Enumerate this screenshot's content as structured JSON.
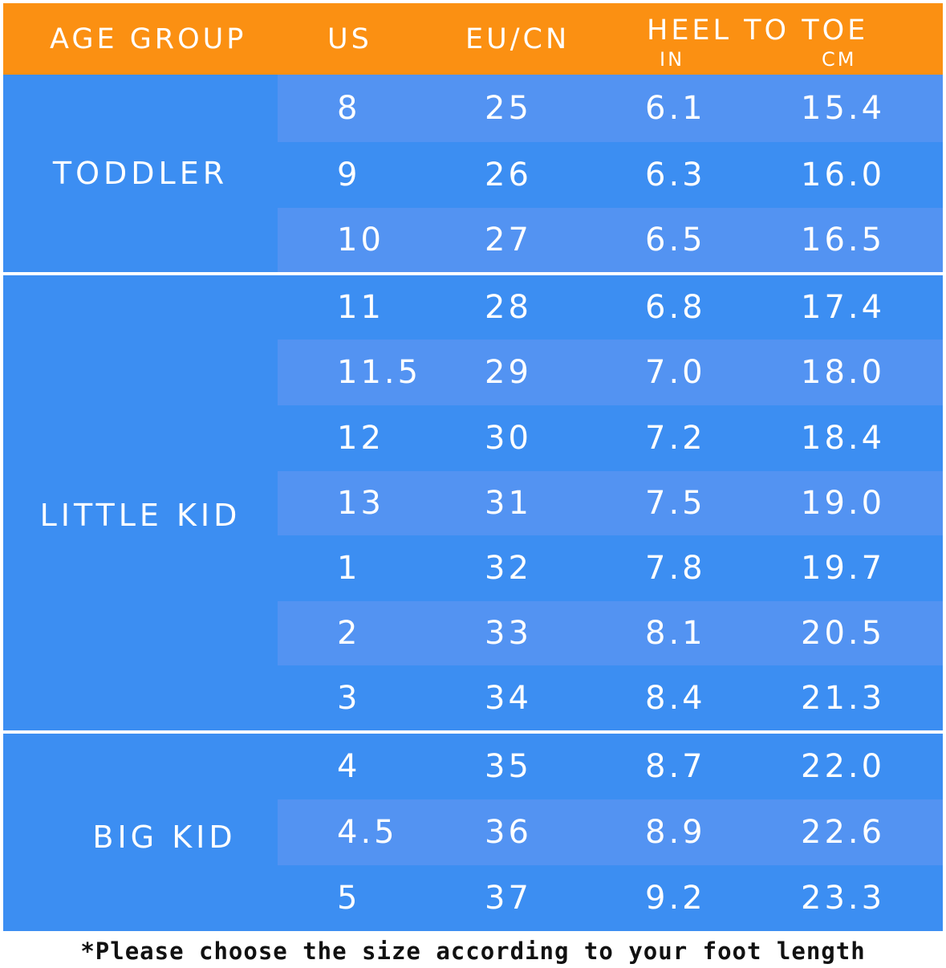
{
  "header": {
    "age_group": "AGE GROUP",
    "us": "US",
    "eu_cn": "EU/CN",
    "heel_to_toe": "HEEL TO TOE",
    "in": "IN",
    "cm": "CM"
  },
  "groups": [
    {
      "label": "TODDLER",
      "rows": [
        {
          "us": "8",
          "eu": "25",
          "in": "6.1",
          "cm": "15.4"
        },
        {
          "us": "9",
          "eu": "26",
          "in": "6.3",
          "cm": "16.0"
        },
        {
          "us": "10",
          "eu": "27",
          "in": "6.5",
          "cm": "16.5"
        }
      ]
    },
    {
      "label": "LITTLE KID",
      "rows": [
        {
          "us": "11",
          "eu": "28",
          "in": "6.8",
          "cm": "17.4"
        },
        {
          "us": "11.5",
          "eu": "29",
          "in": "7.0",
          "cm": "18.0"
        },
        {
          "us": "12",
          "eu": "30",
          "in": "7.2",
          "cm": "18.4"
        },
        {
          "us": "13",
          "eu": "31",
          "in": "7.5",
          "cm": "19.0"
        },
        {
          "us": "1",
          "eu": "32",
          "in": "7.8",
          "cm": "19.7"
        },
        {
          "us": "2",
          "eu": "33",
          "in": "8.1",
          "cm": "20.5"
        },
        {
          "us": "3",
          "eu": "34",
          "in": "8.4",
          "cm": "21.3"
        }
      ]
    },
    {
      "label": "BIG KID",
      "rows": [
        {
          "us": "4",
          "eu": "35",
          "in": "8.7",
          "cm": "22.0"
        },
        {
          "us": "4.5",
          "eu": "36",
          "in": "8.9",
          "cm": "22.6"
        },
        {
          "us": "5",
          "eu": "37",
          "in": "9.2",
          "cm": "23.3"
        }
      ]
    }
  ],
  "note": "*Please choose the size according to your foot length",
  "colors": {
    "header": "#fb9012",
    "group_bg": "#3c8ef2",
    "row_alt": "#5393f2",
    "text": "#ffffff"
  }
}
